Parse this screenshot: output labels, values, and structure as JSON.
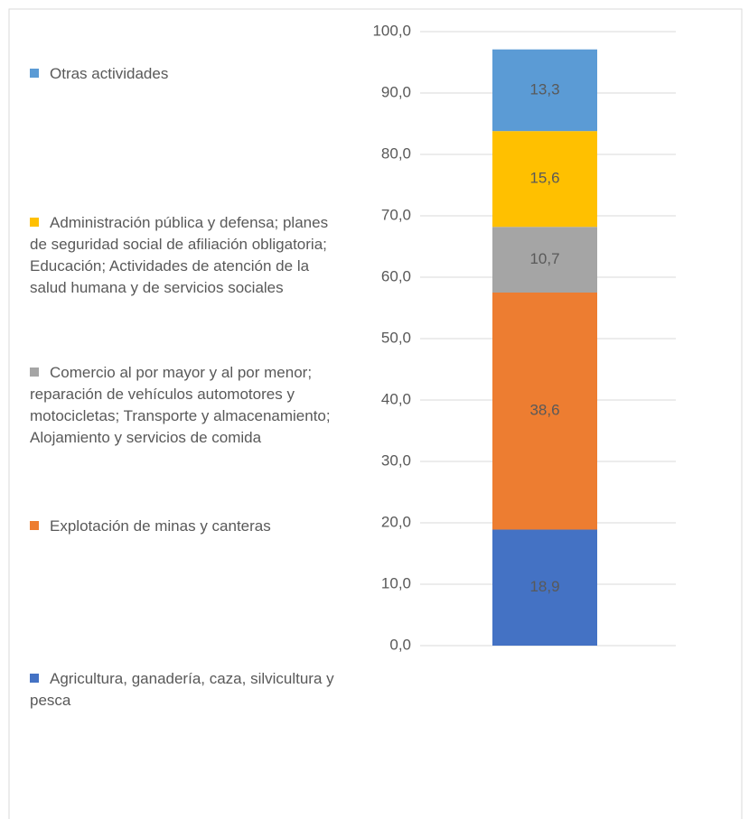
{
  "chart_data": {
    "type": "stacked_bar",
    "categories": [
      null
    ],
    "series": [
      {
        "name": "Agricultura, ganadería, caza, silvicultura y pesca",
        "color": "#4472c4",
        "values": [
          18.9
        ],
        "value_labels": [
          "18,9"
        ]
      },
      {
        "name": "Explotación de minas y canteras",
        "color": "#ed7d31",
        "values": [
          38.6
        ],
        "value_labels": [
          "38,6"
        ]
      },
      {
        "name": "Comercio al por mayor y al por menor; reparación de vehículos automotores y motocicletas; Transporte y almacenamiento; Alojamiento y servicios de comida",
        "color": "#a5a5a5",
        "values": [
          10.7
        ],
        "value_labels": [
          "10,7"
        ]
      },
      {
        "name": "Administración pública y defensa; planes de seguridad social de afiliación obligatoria; Educación; Actividades de atención de la salud humana y de servicios sociales",
        "color": "#ffc000",
        "values": [
          15.6
        ],
        "value_labels": [
          "15,6"
        ]
      },
      {
        "name": "Otras actividades",
        "color": "#5b9bd5",
        "values": [
          13.3
        ],
        "value_labels": [
          "13,3"
        ]
      }
    ],
    "ylim": [
      0,
      100
    ],
    "yticks": [
      {
        "value": 0,
        "label": "0,0"
      },
      {
        "value": 10,
        "label": "10,0"
      },
      {
        "value": 20,
        "label": "20,0"
      },
      {
        "value": 30,
        "label": "30,0"
      },
      {
        "value": 40,
        "label": "40,0"
      },
      {
        "value": 50,
        "label": "50,0"
      },
      {
        "value": 60,
        "label": "60,0"
      },
      {
        "value": 70,
        "label": "70,0"
      },
      {
        "value": 80,
        "label": "80,0"
      },
      {
        "value": 90,
        "label": "90,0"
      },
      {
        "value": 100,
        "label": "100,0"
      }
    ],
    "grid": true,
    "legend": "left"
  }
}
